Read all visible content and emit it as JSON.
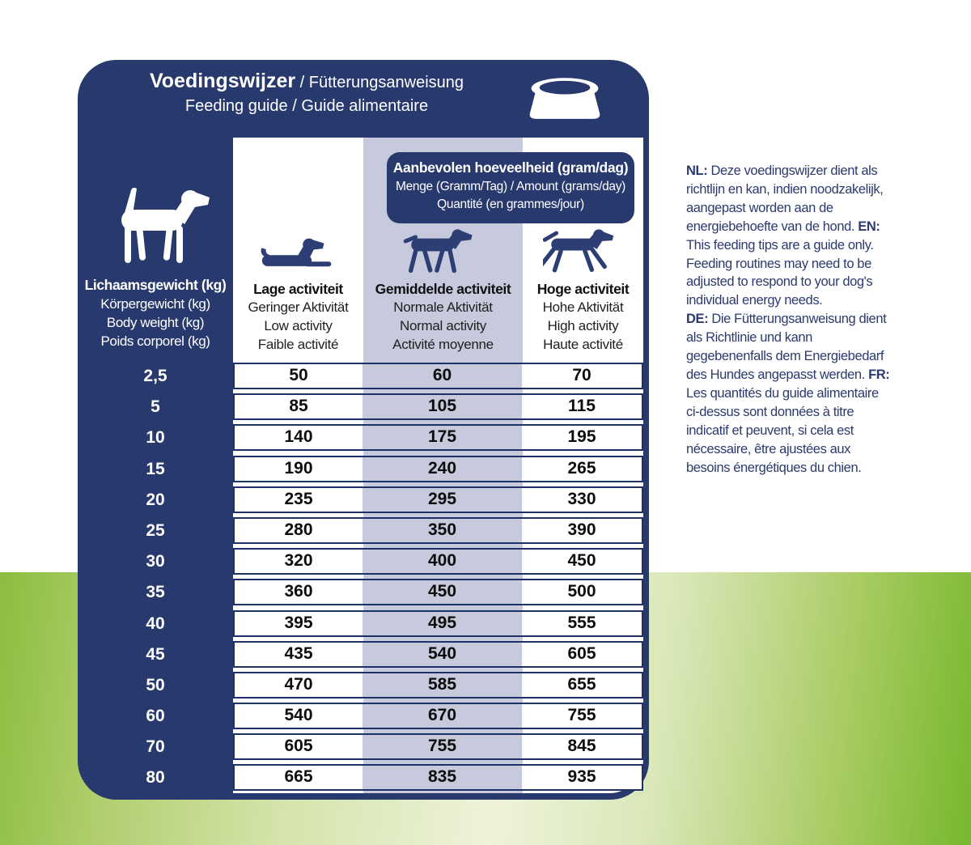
{
  "panel": {
    "title_main": "Voedingswijzer",
    "title_rest": " / Fütterungsanweisung",
    "title_line2": "Feeding guide / Guide alimentaire"
  },
  "recommended": {
    "line1": "Aanbevolen hoeveelheid (gram/dag)",
    "line2": "Menge (Gramm/Tag) / Amount (grams/day)",
    "line3": "Quantité (en grammes/jour)"
  },
  "weight_header": {
    "lines": [
      "Lichaamsgewicht (kg)",
      "Körpergewicht (kg)",
      "Body weight (kg)",
      "Poids corporel (kg)"
    ]
  },
  "columns": [
    {
      "id": "low",
      "icon": "lying-dog-icon",
      "lines": [
        "Lage activiteit",
        "Geringer Aktivität",
        "Low activity",
        "Faible activité"
      ]
    },
    {
      "id": "normal",
      "icon": "walking-dog-icon",
      "lines": [
        "Gemiddelde activiteit",
        "Normale Aktivität",
        "Normal activity",
        "Activité moyenne"
      ]
    },
    {
      "id": "high",
      "icon": "running-dog-icon",
      "lines": [
        "Hoge activiteit",
        "Hohe Aktivität",
        "High activity",
        "Haute activité"
      ]
    }
  ],
  "table": {
    "rows": [
      {
        "weight": "2,5",
        "low": "50",
        "normal": "60",
        "high": "70"
      },
      {
        "weight": "5",
        "low": "85",
        "normal": "105",
        "high": "115"
      },
      {
        "weight": "10",
        "low": "140",
        "normal": "175",
        "high": "195"
      },
      {
        "weight": "15",
        "low": "190",
        "normal": "240",
        "high": "265"
      },
      {
        "weight": "20",
        "low": "235",
        "normal": "295",
        "high": "330"
      },
      {
        "weight": "25",
        "low": "280",
        "normal": "350",
        "high": "390"
      },
      {
        "weight": "30",
        "low": "320",
        "normal": "400",
        "high": "450"
      },
      {
        "weight": "35",
        "low": "360",
        "normal": "450",
        "high": "500"
      },
      {
        "weight": "40",
        "low": "395",
        "normal": "495",
        "high": "555"
      },
      {
        "weight": "45",
        "low": "435",
        "normal": "540",
        "high": "605"
      },
      {
        "weight": "50",
        "low": "470",
        "normal": "585",
        "high": "655"
      },
      {
        "weight": "60",
        "low": "540",
        "normal": "670",
        "high": "755"
      },
      {
        "weight": "70",
        "low": "605",
        "normal": "755",
        "high": "845"
      },
      {
        "weight": "80",
        "low": "665",
        "normal": "835",
        "high": "935"
      }
    ]
  },
  "chart_data": {
    "type": "table",
    "title": "Aanbevolen hoeveelheid (gram/dag) / Amount (grams/day)",
    "columns": [
      "Body weight (kg)",
      "Low activity (g/day)",
      "Normal activity (g/day)",
      "High activity (g/day)"
    ],
    "rows": [
      [
        "2,5",
        50,
        60,
        70
      ],
      [
        "5",
        85,
        105,
        115
      ],
      [
        "10",
        140,
        175,
        195
      ],
      [
        "15",
        190,
        240,
        265
      ],
      [
        "20",
        235,
        295,
        330
      ],
      [
        "25",
        280,
        350,
        390
      ],
      [
        "30",
        320,
        400,
        450
      ],
      [
        "35",
        360,
        450,
        500
      ],
      [
        "40",
        395,
        495,
        555
      ],
      [
        "45",
        435,
        540,
        605
      ],
      [
        "50",
        470,
        585,
        655
      ],
      [
        "60",
        540,
        670,
        755
      ],
      [
        "70",
        605,
        755,
        845
      ],
      [
        "80",
        665,
        835,
        935
      ]
    ]
  },
  "note": {
    "lines": [
      [
        {
          "b": "NL:"
        },
        {
          "t": " Deze voedingswijzer dient als"
        }
      ],
      [
        {
          "t": "richtlijn en kan, indien noodzakelijk,"
        }
      ],
      [
        {
          "t": "aangepast worden aan de"
        }
      ],
      [
        {
          "t": "energiebehoefte van de hond. "
        },
        {
          "b": "EN:"
        }
      ],
      [
        {
          "t": "This feeding tips are a guide only."
        }
      ],
      [
        {
          "t": "Feeding routines may need to be"
        }
      ],
      [
        {
          "t": "adjusted to respond to your dog's"
        }
      ],
      [
        {
          "t": "individual energy needs."
        }
      ],
      [
        {
          "b": "DE:"
        },
        {
          "t": " Die Fütterungsanweisung dient"
        }
      ],
      [
        {
          "t": "als Richtlinie und kann"
        }
      ],
      [
        {
          "t": "gegebenenfalls dem Energiebedarf"
        }
      ],
      [
        {
          "t": "des Hundes angepasst werden. "
        },
        {
          "b": "FR:"
        }
      ],
      [
        {
          "t": "Les quantités du guide alimentaire"
        }
      ],
      [
        {
          "t": "ci-dessus sont données à titre"
        }
      ],
      [
        {
          "t": "indicatif et peuvent, si cela est"
        }
      ],
      [
        {
          "t": "nécessaire, être ajustées aux"
        }
      ],
      [
        {
          "t": "besoins énergétiques du chien."
        }
      ]
    ]
  },
  "colors": {
    "navy": "#27396d",
    "lavender": "#c7c9dc",
    "row_border": "#1e3166",
    "green_left": "#8cbd3f",
    "green_pale": "#eef3da",
    "green_right": "#77b82c",
    "note_text": "#2c3a6e"
  }
}
